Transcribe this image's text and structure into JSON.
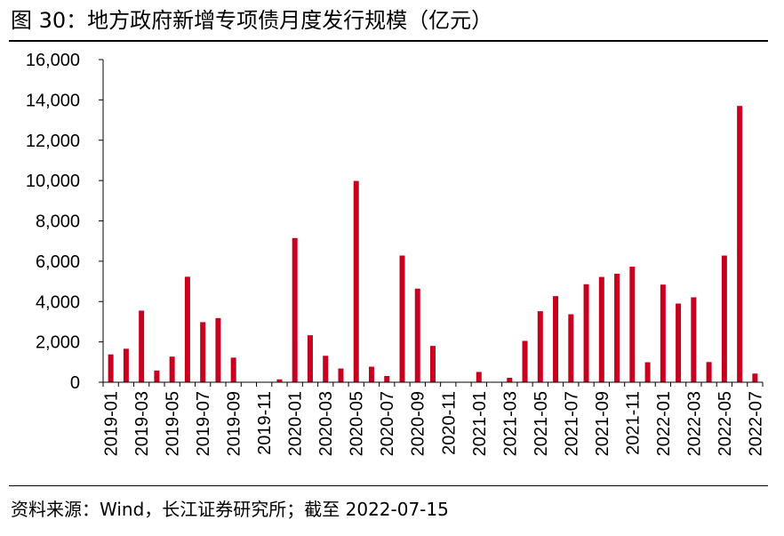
{
  "title": "图 30：地方政府新增专项债月度发行规模（亿元）",
  "source": "资料来源：Wind，长江证券研究所；截至 2022-07-15",
  "colors": {
    "bar": "#c8001e",
    "axis": "#000000"
  },
  "chart_data": {
    "type": "bar",
    "title": "图 30：地方政府新增专项债月度发行规模（亿元）",
    "xlabel": "",
    "ylabel": "",
    "ylim": [
      0,
      16000
    ],
    "yticks": [
      "0",
      "2,000",
      "4,000",
      "6,000",
      "8,000",
      "10,000",
      "12,000",
      "14,000",
      "16,000"
    ],
    "grid": false,
    "legend": "none",
    "categories": [
      "2019-01",
      "2019-02",
      "2019-03",
      "2019-04",
      "2019-05",
      "2019-06",
      "2019-07",
      "2019-08",
      "2019-09",
      "2019-10",
      "2019-11",
      "2019-12",
      "2020-01",
      "2020-02",
      "2020-03",
      "2020-04",
      "2020-05",
      "2020-06",
      "2020-07",
      "2020-08",
      "2020-09",
      "2020-10",
      "2020-11",
      "2020-12",
      "2021-01",
      "2021-02",
      "2021-03",
      "2021-04",
      "2021-05",
      "2021-06",
      "2021-07",
      "2021-08",
      "2021-09",
      "2021-10",
      "2021-11",
      "2021-12",
      "2022-01",
      "2022-02",
      "2022-03",
      "2022-04",
      "2022-05",
      "2022-06",
      "2022-07"
    ],
    "tick_labels": [
      "2019-01",
      "2019-03",
      "2019-05",
      "2019-07",
      "2019-09",
      "2019-11",
      "2020-01",
      "2020-03",
      "2020-05",
      "2020-07",
      "2020-09",
      "2020-11",
      "2021-01",
      "2021-03",
      "2021-05",
      "2021-07",
      "2021-09",
      "2021-11",
      "2022-01",
      "2022-03",
      "2022-05",
      "2022-07"
    ],
    "values": [
      1380,
      1660,
      3550,
      580,
      1270,
      5230,
      2980,
      3180,
      1220,
      0,
      0,
      140,
      7150,
      2330,
      1310,
      680,
      9980,
      770,
      310,
      6280,
      4640,
      1800,
      0,
      0,
      510,
      0,
      220,
      2050,
      3520,
      4270,
      3370,
      4860,
      5220,
      5380,
      5730,
      990,
      4840,
      3900,
      4210,
      1000,
      6280,
      13700,
      430
    ]
  }
}
